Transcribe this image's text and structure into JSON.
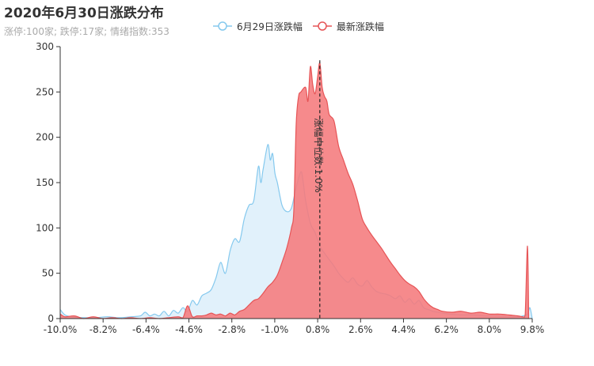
{
  "chart_data": {
    "type": "area",
    "title": "2020年6月30日涨跌分布",
    "subtitle": "涨停:100家; 跌停:17家; 情绪指数:353",
    "x_ticks": [
      "-10.0%",
      "-8.2%",
      "-6.4%",
      "-4.6%",
      "-2.8%",
      "-1.0%",
      "0.8%",
      "2.6%",
      "4.4%",
      "6.2%",
      "8.0%",
      "9.8%"
    ],
    "x_range": [
      -10.0,
      10.0
    ],
    "ylim": [
      0,
      300
    ],
    "y_ticks": [
      "0",
      "50",
      "100",
      "150",
      "200",
      "250",
      "300"
    ],
    "legend_position": "top-center",
    "grid": false,
    "median_marker": {
      "x": 1.0,
      "label": "涨幅中位数:1.0%"
    },
    "series": [
      {
        "name": "6月29日涨跌幅",
        "color": "#85c9ee",
        "fill": "#dff0fb",
        "points": [
          [
            -10.0,
            10
          ],
          [
            -9.8,
            4
          ],
          [
            -9.5,
            2
          ],
          [
            -9.0,
            1
          ],
          [
            -8.5,
            1
          ],
          [
            -8.0,
            2
          ],
          [
            -7.5,
            1
          ],
          [
            -7.0,
            2
          ],
          [
            -6.6,
            3
          ],
          [
            -6.4,
            7
          ],
          [
            -6.2,
            3
          ],
          [
            -6.0,
            5
          ],
          [
            -5.8,
            3
          ],
          [
            -5.6,
            8
          ],
          [
            -5.4,
            3
          ],
          [
            -5.2,
            9
          ],
          [
            -5.0,
            6
          ],
          [
            -4.8,
            12
          ],
          [
            -4.6,
            8
          ],
          [
            -4.4,
            20
          ],
          [
            -4.2,
            15
          ],
          [
            -4.0,
            25
          ],
          [
            -3.8,
            28
          ],
          [
            -3.6,
            32
          ],
          [
            -3.4,
            45
          ],
          [
            -3.2,
            62
          ],
          [
            -3.0,
            50
          ],
          [
            -2.8,
            75
          ],
          [
            -2.6,
            88
          ],
          [
            -2.4,
            85
          ],
          [
            -2.2,
            110
          ],
          [
            -2.0,
            125
          ],
          [
            -1.8,
            130
          ],
          [
            -1.6,
            168
          ],
          [
            -1.5,
            150
          ],
          [
            -1.4,
            165
          ],
          [
            -1.2,
            192
          ],
          [
            -1.1,
            175
          ],
          [
            -1.0,
            182
          ],
          [
            -0.9,
            160
          ],
          [
            -0.8,
            150
          ],
          [
            -0.6,
            125
          ],
          [
            -0.4,
            118
          ],
          [
            -0.2,
            122
          ],
          [
            0.0,
            145
          ],
          [
            0.2,
            162
          ],
          [
            0.3,
            150
          ],
          [
            0.4,
            130
          ],
          [
            0.6,
            105
          ],
          [
            0.8,
            95
          ],
          [
            1.0,
            80
          ],
          [
            1.2,
            72
          ],
          [
            1.4,
            65
          ],
          [
            1.6,
            58
          ],
          [
            1.8,
            50
          ],
          [
            2.0,
            44
          ],
          [
            2.2,
            40
          ],
          [
            2.4,
            45
          ],
          [
            2.6,
            38
          ],
          [
            2.8,
            36
          ],
          [
            3.0,
            42
          ],
          [
            3.2,
            35
          ],
          [
            3.4,
            30
          ],
          [
            3.6,
            28
          ],
          [
            3.8,
            27
          ],
          [
            4.0,
            25
          ],
          [
            4.2,
            22
          ],
          [
            4.4,
            25
          ],
          [
            4.6,
            18
          ],
          [
            4.8,
            22
          ],
          [
            5.0,
            16
          ],
          [
            5.2,
            20
          ],
          [
            5.4,
            12
          ],
          [
            5.6,
            10
          ],
          [
            5.8,
            8
          ],
          [
            6.0,
            7
          ],
          [
            6.2,
            6
          ],
          [
            6.5,
            5
          ],
          [
            7.0,
            4
          ],
          [
            7.5,
            4
          ],
          [
            8.0,
            3
          ],
          [
            8.5,
            3
          ],
          [
            9.0,
            2
          ],
          [
            9.4,
            2
          ],
          [
            9.6,
            3
          ],
          [
            9.8,
            5
          ],
          [
            9.9,
            12
          ],
          [
            10.0,
            0
          ]
        ]
      },
      {
        "name": "最新涨跌幅",
        "color": "#e65456",
        "fill": "#f57a7c",
        "points": [
          [
            -10.0,
            5
          ],
          [
            -9.8,
            2
          ],
          [
            -9.4,
            3
          ],
          [
            -9.0,
            0
          ],
          [
            -8.6,
            2
          ],
          [
            -8.2,
            0
          ],
          [
            -7.8,
            1
          ],
          [
            -7.4,
            0
          ],
          [
            -7.0,
            1
          ],
          [
            -6.6,
            0
          ],
          [
            -6.2,
            1
          ],
          [
            -5.8,
            0
          ],
          [
            -5.4,
            1
          ],
          [
            -5.0,
            2
          ],
          [
            -4.8,
            1
          ],
          [
            -4.6,
            14
          ],
          [
            -4.4,
            2
          ],
          [
            -4.2,
            3
          ],
          [
            -4.0,
            3
          ],
          [
            -3.8,
            4
          ],
          [
            -3.6,
            6
          ],
          [
            -3.4,
            4
          ],
          [
            -3.2,
            5
          ],
          [
            -3.0,
            3
          ],
          [
            -2.8,
            6
          ],
          [
            -2.6,
            4
          ],
          [
            -2.4,
            8
          ],
          [
            -2.2,
            10
          ],
          [
            -2.0,
            15
          ],
          [
            -1.8,
            20
          ],
          [
            -1.6,
            22
          ],
          [
            -1.4,
            28
          ],
          [
            -1.2,
            35
          ],
          [
            -1.0,
            40
          ],
          [
            -0.8,
            48
          ],
          [
            -0.6,
            62
          ],
          [
            -0.4,
            78
          ],
          [
            -0.2,
            100
          ],
          [
            -0.1,
            120
          ],
          [
            0.0,
            215
          ],
          [
            0.1,
            245
          ],
          [
            0.2,
            250
          ],
          [
            0.4,
            255
          ],
          [
            0.5,
            240
          ],
          [
            0.6,
            278
          ],
          [
            0.7,
            258
          ],
          [
            0.8,
            248
          ],
          [
            0.9,
            265
          ],
          [
            1.0,
            282
          ],
          [
            1.1,
            255
          ],
          [
            1.2,
            245
          ],
          [
            1.3,
            240
          ],
          [
            1.4,
            225
          ],
          [
            1.6,
            218
          ],
          [
            1.8,
            190
          ],
          [
            2.0,
            175
          ],
          [
            2.2,
            160
          ],
          [
            2.4,
            148
          ],
          [
            2.6,
            130
          ],
          [
            2.8,
            110
          ],
          [
            3.0,
            100
          ],
          [
            3.2,
            92
          ],
          [
            3.4,
            85
          ],
          [
            3.6,
            78
          ],
          [
            3.8,
            70
          ],
          [
            4.0,
            62
          ],
          [
            4.2,
            55
          ],
          [
            4.4,
            48
          ],
          [
            4.6,
            42
          ],
          [
            4.8,
            38
          ],
          [
            5.0,
            35
          ],
          [
            5.2,
            30
          ],
          [
            5.4,
            22
          ],
          [
            5.6,
            16
          ],
          [
            5.8,
            12
          ],
          [
            6.0,
            10
          ],
          [
            6.2,
            8
          ],
          [
            6.6,
            7
          ],
          [
            7.0,
            8
          ],
          [
            7.4,
            6
          ],
          [
            7.8,
            7
          ],
          [
            8.2,
            5
          ],
          [
            8.6,
            5
          ],
          [
            9.0,
            4
          ],
          [
            9.4,
            3
          ],
          [
            9.6,
            2
          ],
          [
            9.7,
            4
          ],
          [
            9.8,
            80
          ],
          [
            9.85,
            0
          ]
        ]
      }
    ]
  }
}
